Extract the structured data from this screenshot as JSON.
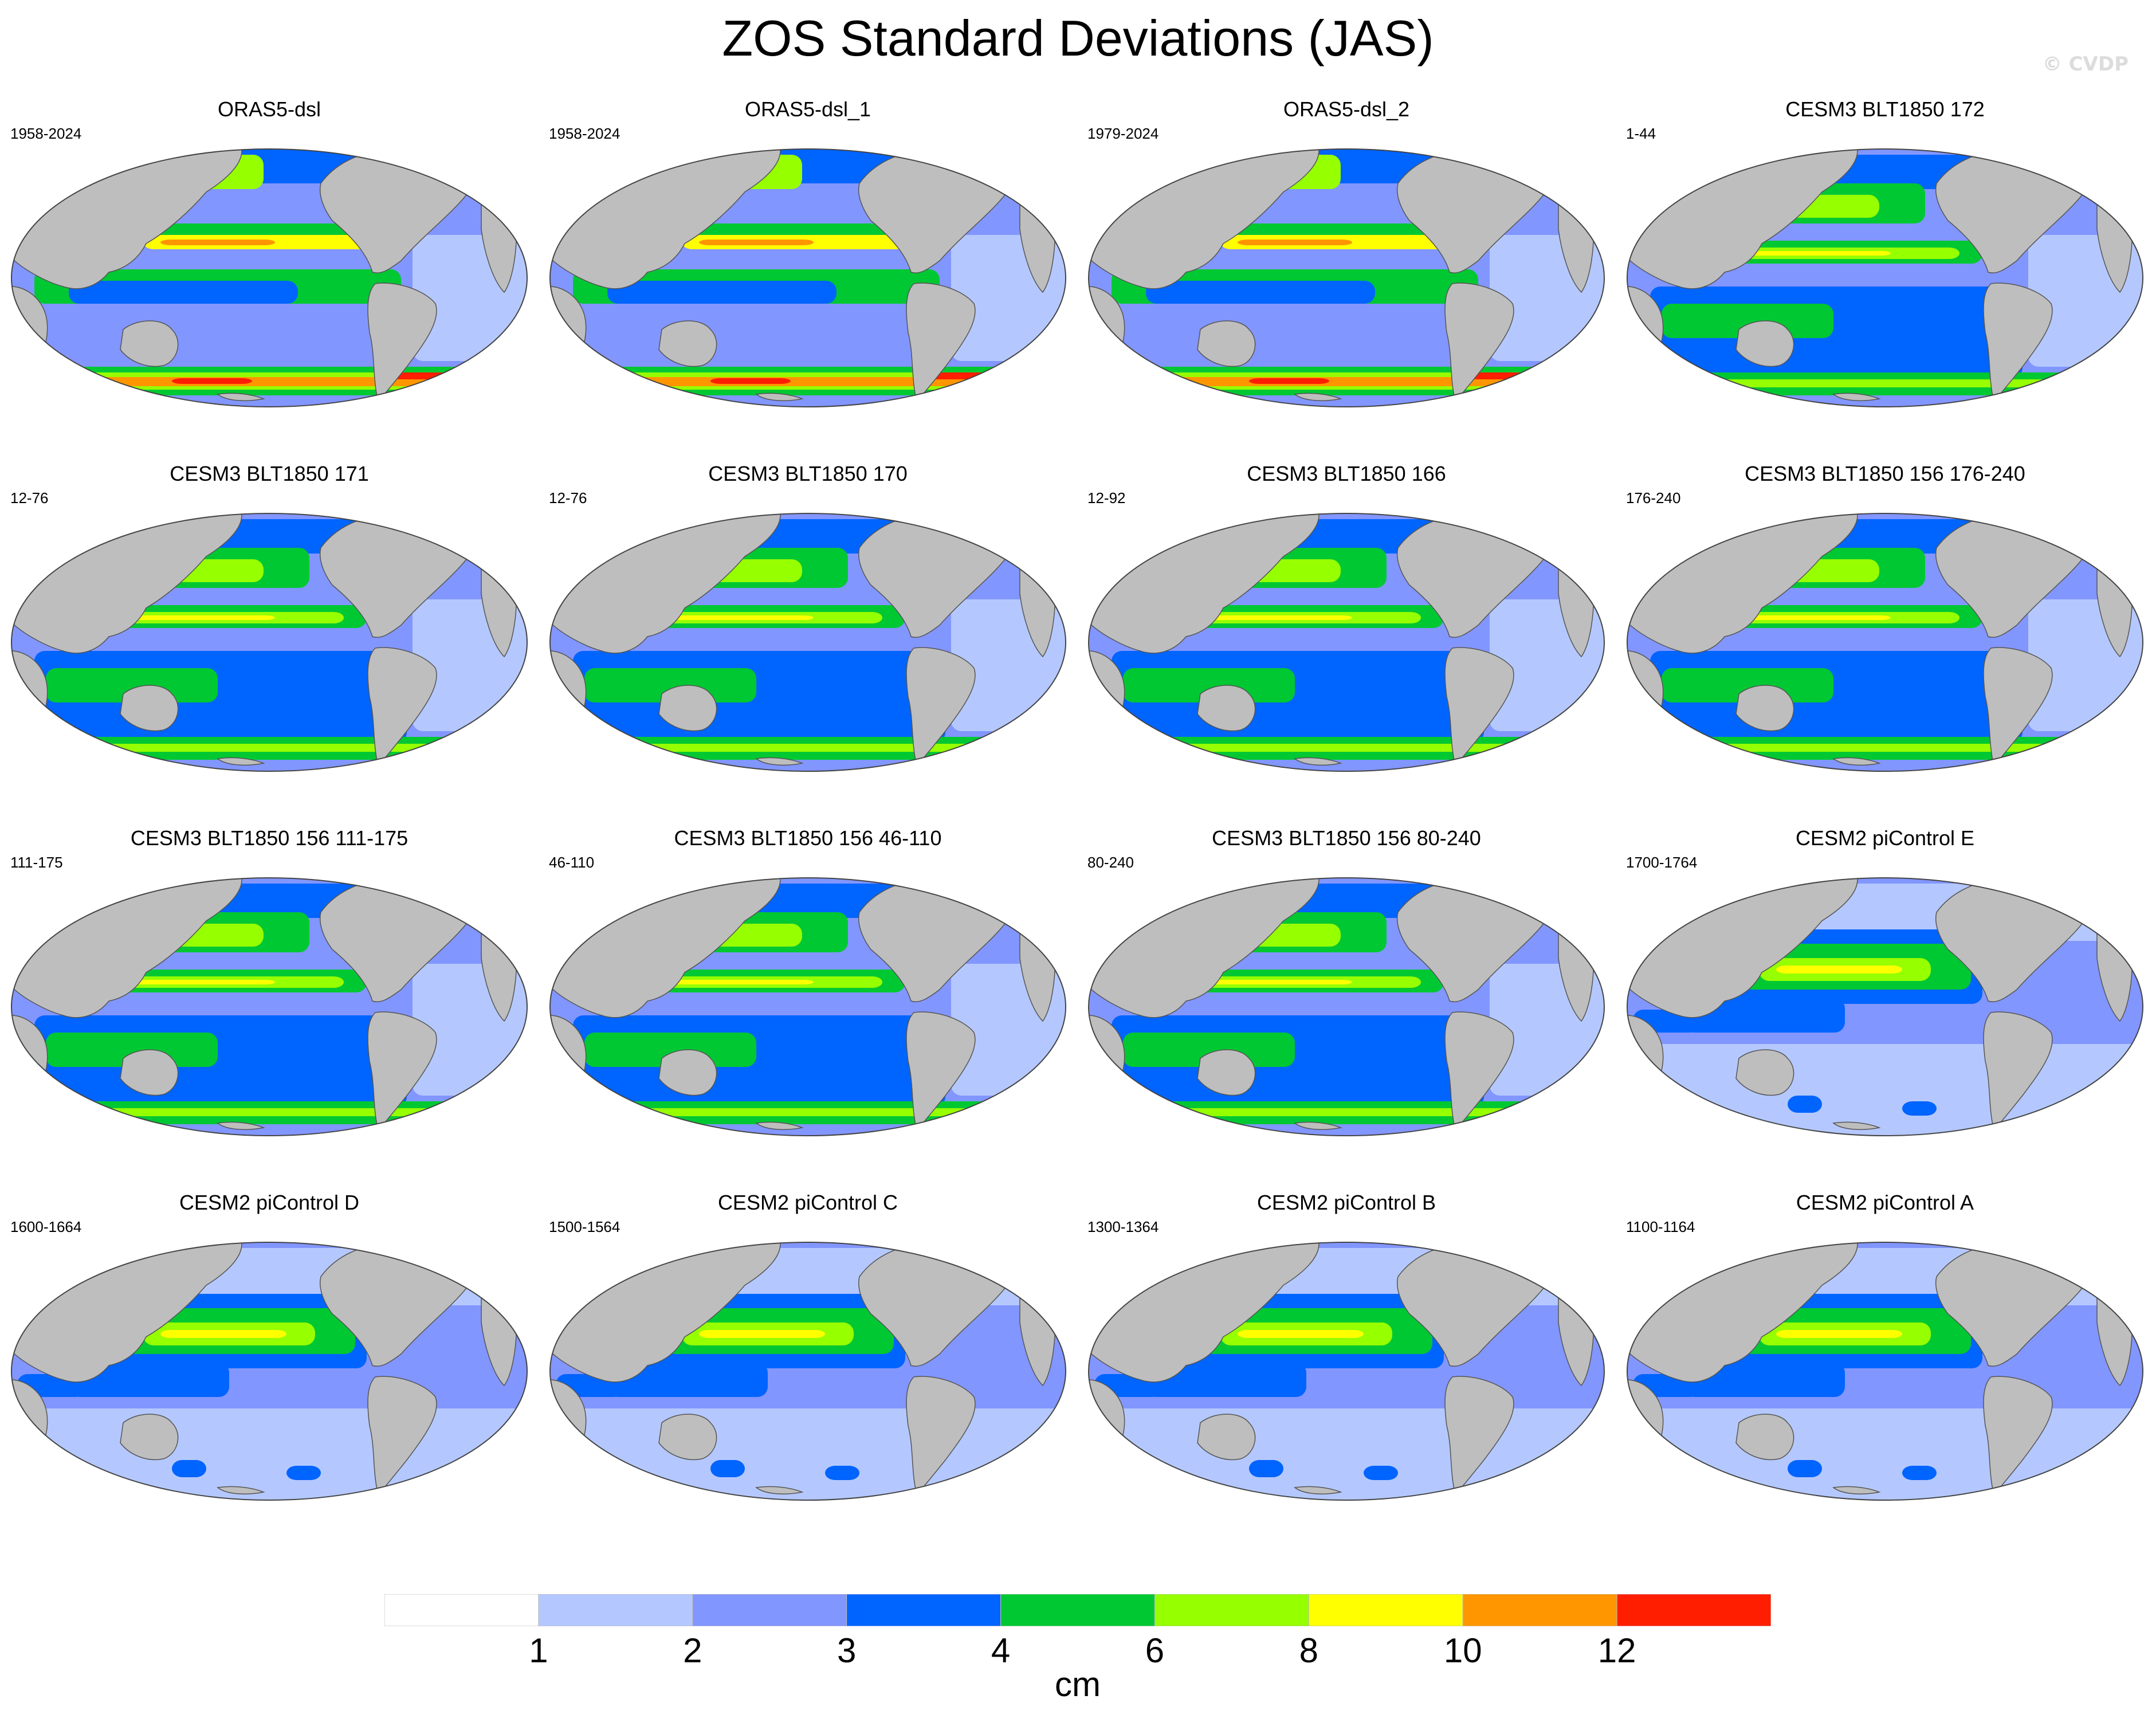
{
  "title": "ZOS Standard Deviations (JAS)",
  "copyright": "© CVDP",
  "panels": [
    {
      "title": "ORAS5-dsl",
      "period": "1958-2024",
      "style": "reanalysis"
    },
    {
      "title": "ORAS5-dsl_1",
      "period": "1958-2024",
      "style": "reanalysis"
    },
    {
      "title": "ORAS5-dsl_2",
      "period": "1979-2024",
      "style": "reanalysis"
    },
    {
      "title": "CESM3 BLT1850 172",
      "period": "1-44",
      "style": "cesm3"
    },
    {
      "title": "CESM3 BLT1850 171",
      "period": "12-76",
      "style": "cesm3"
    },
    {
      "title": "CESM3 BLT1850 170",
      "period": "12-76",
      "style": "cesm3"
    },
    {
      "title": "CESM3 BLT1850 166",
      "period": "12-92",
      "style": "cesm3"
    },
    {
      "title": "CESM3 BLT1850 156 176-240",
      "period": "176-240",
      "style": "cesm3"
    },
    {
      "title": "CESM3 BLT1850 156 111-175",
      "period": "111-175",
      "style": "cesm3"
    },
    {
      "title": "CESM3 BLT1850 156 46-110",
      "period": "46-110",
      "style": "cesm3"
    },
    {
      "title": "CESM3 BLT1850 156 80-240",
      "period": "80-240",
      "style": "cesm3"
    },
    {
      "title": "CESM2 piControl E",
      "period": "1700-1764",
      "style": "cesm2"
    },
    {
      "title": "CESM2 piControl D",
      "period": "1600-1664",
      "style": "cesm2"
    },
    {
      "title": "CESM2 piControl C",
      "period": "1500-1564",
      "style": "cesm2"
    },
    {
      "title": "CESM2 piControl B",
      "period": "1300-1364",
      "style": "cesm2"
    },
    {
      "title": "CESM2 piControl A",
      "period": "1100-1164",
      "style": "cesm2"
    }
  ],
  "colorbar": {
    "units": "cm",
    "boundaries": [
      "1",
      "2",
      "3",
      "4",
      "6",
      "8",
      "10",
      "12"
    ],
    "colors": [
      "#ffffff",
      "#b4c8ff",
      "#8296ff",
      "#0064ff",
      "#00c832",
      "#96ff00",
      "#ffff00",
      "#ff9600",
      "#ff1e00"
    ]
  },
  "land_color": "#bebebe"
}
